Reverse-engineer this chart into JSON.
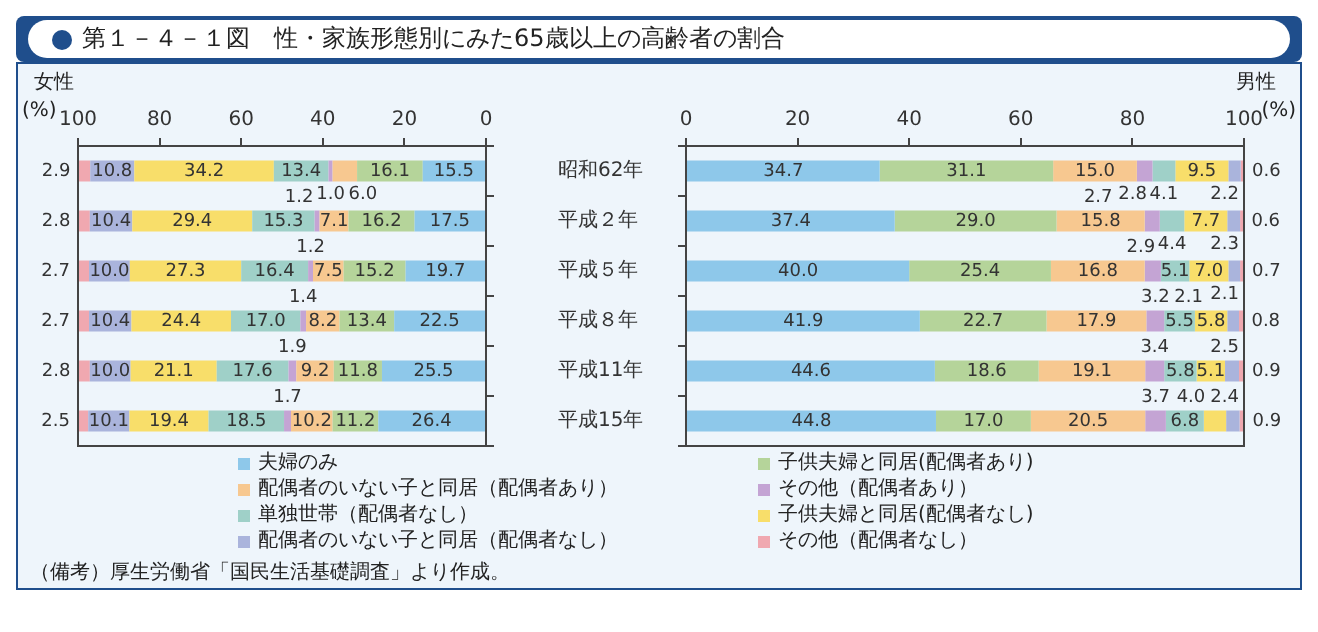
{
  "chart_data": [
    {
      "type": "bar",
      "title": "第１－４－１図　性・家族形態別にみた65歳以上の高齢者の割合",
      "subtitle": "女性",
      "xlabel": "(%)",
      "orientation": "horizontal",
      "stacked": true,
      "grid": false,
      "legend": "bottom",
      "tick_labels": "xy",
      "xlim": [
        100,
        0
      ],
      "xticks": [
        0,
        20,
        40,
        60,
        80,
        100
      ],
      "categories": [
        "昭和62年",
        "平成２年",
        "平成５年",
        "平成８年",
        "平成11年",
        "平成15年"
      ],
      "series": [
        {
          "name": "夫婦のみ",
          "color": "#8ec8ea",
          "values": [
            15.5,
            17.5,
            19.7,
            22.5,
            25.5,
            26.4
          ],
          "value_labels": [
            "15.5",
            "17.5",
            "19.7",
            "22.5",
            "25.5",
            "26.4"
          ]
        },
        {
          "name": "子供夫婦と同居(配偶者あり)",
          "color": "#b5d49a",
          "values": [
            16.1,
            16.2,
            15.2,
            13.4,
            11.8,
            11.2
          ],
          "value_labels": [
            "16.1",
            "16.2",
            "15.2",
            "13.4",
            "11.8",
            "11.2"
          ]
        },
        {
          "name": "配偶者のいない子と同居（配偶者あり）",
          "color": "#f7c890",
          "values": [
            6.0,
            7.1,
            7.5,
            8.2,
            9.2,
            10.2
          ],
          "value_labels": [
            "6.0",
            "7.1",
            "7.5",
            "8.2",
            "9.2",
            "10.2"
          ]
        },
        {
          "name": "その他（配偶者あり）",
          "color": "#c4a4d4",
          "values": [
            1.0,
            1.2,
            1.2,
            1.4,
            1.9,
            1.7
          ],
          "value_labels": [
            "1.0",
            "1.2",
            "1.2",
            "1.4",
            "1.9",
            "1.7"
          ]
        },
        {
          "name": "単独世帯（配偶者なし）",
          "color": "#9fd0c8",
          "values": [
            13.4,
            15.3,
            16.4,
            17.0,
            17.6,
            18.5
          ],
          "value_labels": [
            "13.4",
            "15.3",
            "16.4",
            "17.0",
            "17.6",
            "18.5"
          ]
        },
        {
          "name": "子供夫婦と同居(配偶者なし)",
          "color": "#f8de6a",
          "values": [
            34.2,
            29.4,
            27.3,
            24.4,
            21.1,
            19.4
          ],
          "value_labels": [
            "34.2",
            "29.4",
            "27.3",
            "24.4",
            "21.1",
            "19.4"
          ]
        },
        {
          "name": "配偶者のいない子と同居（配偶者なし）",
          "color": "#aab4dc",
          "values": [
            10.8,
            10.4,
            10.0,
            10.4,
            10.0,
            10.1
          ],
          "value_labels": [
            "10.8",
            "10.4",
            "10.0",
            "10.4",
            "10.0",
            "10.1"
          ]
        },
        {
          "name": "その他（配偶者なし）",
          "color": "#f0a8b0",
          "values": [
            2.9,
            2.8,
            2.7,
            2.7,
            2.8,
            2.5
          ],
          "value_labels": [
            "2.9",
            "2.8",
            "2.7",
            "2.7",
            "2.8",
            "2.5"
          ]
        }
      ],
      "annotations": [
        "（備考）厚生労働省「国民生活基礎調査」より作成。"
      ]
    },
    {
      "type": "bar",
      "subtitle": "男性",
      "xlabel": "(%)",
      "orientation": "horizontal",
      "stacked": true,
      "grid": false,
      "tick_labels": "x",
      "xlim": [
        0,
        100
      ],
      "xticks": [
        0,
        20,
        40,
        60,
        80,
        100
      ],
      "categories": [
        null,
        null,
        null,
        null,
        null,
        null
      ],
      "series": [
        {
          "color": "#8ec8ea",
          "values": [
            34.7,
            37.4,
            40.0,
            41.9,
            44.6,
            44.8
          ],
          "value_labels": [
            "34.7",
            "37.4",
            "40.0",
            "41.9",
            "44.6",
            "44.8"
          ]
        },
        {
          "color": "#b5d49a",
          "values": [
            31.1,
            29.0,
            25.4,
            22.7,
            18.6,
            17.0
          ],
          "value_labels": [
            "31.1",
            "29.0",
            "25.4",
            "22.7",
            "18.6",
            "17.0"
          ]
        },
        {
          "color": "#f7c890",
          "values": [
            15.0,
            15.8,
            16.8,
            17.9,
            19.1,
            20.5
          ],
          "value_labels": [
            "15.0",
            "15.8",
            "16.8",
            "17.9",
            "19.1",
            "20.5"
          ]
        },
        {
          "color": "#c4a4d4",
          "values": [
            2.8,
            2.7,
            2.9,
            3.2,
            3.4,
            3.7
          ],
          "value_labels": [
            "2.8",
            "2.7",
            "2.9",
            "3.2",
            "3.4",
            "3.7"
          ]
        },
        {
          "color": "#9fd0c8",
          "values": [
            4.1,
            4.4,
            5.1,
            5.5,
            5.8,
            6.8
          ],
          "value_labels": [
            "4.1",
            "4.4",
            "5.1",
            "5.5",
            "5.8",
            "6.8"
          ]
        },
        {
          "color": "#f8de6a",
          "values": [
            9.5,
            7.7,
            7.0,
            5.8,
            5.1,
            4.0
          ],
          "value_labels": [
            "9.5",
            "7.7",
            "7.0",
            "5.8",
            "5.1",
            "4.0"
          ]
        },
        {
          "color": "#aab4dc",
          "values": [
            2.2,
            2.3,
            2.1,
            2.1,
            2.5,
            2.4
          ],
          "value_labels": [
            "2.2",
            "2.3",
            "2.1",
            "2.1",
            "2.5",
            "2.4"
          ]
        },
        {
          "color": "#f0a8b0",
          "values": [
            0.6,
            0.6,
            0.7,
            0.8,
            0.9,
            0.9
          ],
          "value_labels": [
            "0.6",
            "0.6",
            "0.7",
            "0.8",
            "0.9",
            "0.9"
          ]
        }
      ]
    }
  ]
}
